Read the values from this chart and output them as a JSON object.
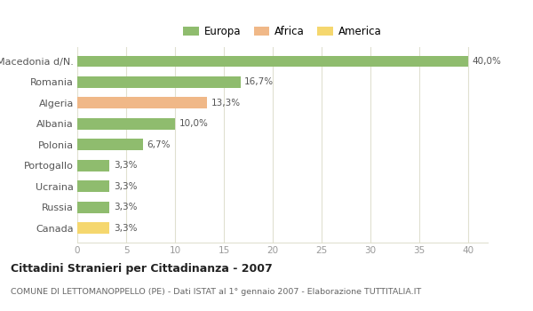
{
  "categories": [
    "Canada",
    "Russia",
    "Ucraina",
    "Portogallo",
    "Polonia",
    "Albania",
    "Algeria",
    "Romania",
    "Macedonia d/N."
  ],
  "values": [
    3.3,
    3.3,
    3.3,
    3.3,
    6.7,
    10.0,
    13.3,
    16.7,
    40.0
  ],
  "bar_colors": [
    "#f5d76e",
    "#8fbc6e",
    "#8fbc6e",
    "#8fbc6e",
    "#8fbc6e",
    "#8fbc6e",
    "#f0b888",
    "#8fbc6e",
    "#8fbc6e"
  ],
  "labels": [
    "3,3%",
    "3,3%",
    "3,3%",
    "3,3%",
    "6,7%",
    "10,0%",
    "13,3%",
    "16,7%",
    "40,0%"
  ],
  "legend": [
    {
      "label": "Europa",
      "color": "#8fbc6e"
    },
    {
      "label": "Africa",
      "color": "#f0b888"
    },
    {
      "label": "America",
      "color": "#f5d76e"
    }
  ],
  "title": "Cittadini Stranieri per Cittadinanza - 2007",
  "subtitle": "COMUNE DI LETTOMANOPPELLO (PE) - Dati ISTAT al 1° gennaio 2007 - Elaborazione TUTTITALIA.IT",
  "xlim": [
    0,
    42
  ],
  "xticks": [
    0,
    5,
    10,
    15,
    20,
    25,
    30,
    35,
    40
  ],
  "background_color": "#ffffff",
  "grid_color": "#e0e0d0",
  "bar_height": 0.55,
  "label_color": "#555555",
  "ytick_color": "#555555",
  "xtick_color": "#999999"
}
